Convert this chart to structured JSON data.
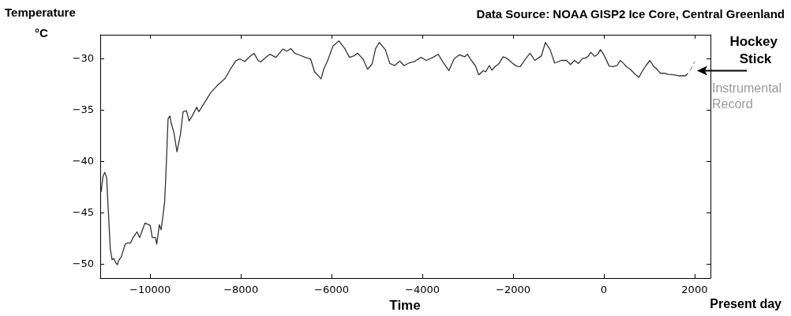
{
  "chart_data": {
    "type": "line",
    "title": "Data Source: NOAA GISP2 Ice Core, Central Greenland",
    "xlabel": "Time",
    "ylabel": "Temperature\n°C",
    "annotations": [
      "Hockey Stick",
      "Present day"
    ],
    "xlim": [
      -11100,
      2350
    ],
    "xticks": [
      -10000,
      -8000,
      -6000,
      -4000,
      -2000,
      0,
      2000
    ],
    "ylim": [
      -51.4,
      -27.7
    ],
    "yticks": [
      -50,
      -45,
      -40,
      -35,
      -30
    ],
    "grid": false,
    "legend": false,
    "marker": "none",
    "series": [
      {
        "color": "#333333",
        "line_style": "solid",
        "x": [
          -11080,
          -11040,
          -11000,
          -10960,
          -10920,
          -10880,
          -10840,
          -10800,
          -10760,
          -10720,
          -10696,
          -10638,
          -10551,
          -10493,
          -10435,
          -10377,
          -10290,
          -10232,
          -10116,
          -10000,
          -9954,
          -9884,
          -9855,
          -9797,
          -9757,
          -9681,
          -9641,
          -9606,
          -9565,
          -9536,
          -9478,
          -9409,
          -9333,
          -9275,
          -9200,
          -9142,
          -9072,
          -8974,
          -8928,
          -8841,
          -8667,
          -8522,
          -8348,
          -8232,
          -8116,
          -8029,
          -7913,
          -7797,
          -7710,
          -7623,
          -7565,
          -7449,
          -7362,
          -7229,
          -7072,
          -6985,
          -6899,
          -6812,
          -6696,
          -6580,
          -6464,
          -6377,
          -6232,
          -6174,
          -6087,
          -5971,
          -5838,
          -5710,
          -5606,
          -5507,
          -5429,
          -5312,
          -5207,
          -5108,
          -5032,
          -4950,
          -4816,
          -4717,
          -4612,
          -4496,
          -4408,
          -4292,
          -4175,
          -4029,
          -3913,
          -3767,
          -3650,
          -3534,
          -3417,
          -3301,
          -3184,
          -3067,
          -3009,
          -2921,
          -2834,
          -2758,
          -2659,
          -2601,
          -2525,
          -2467,
          -2397,
          -2310,
          -2222,
          -2135,
          -2018,
          -1930,
          -1843,
          -1726,
          -1627,
          -1522,
          -1376,
          -1289,
          -1184,
          -1085,
          -939,
          -823,
          -735,
          -648,
          -560,
          -472,
          -414,
          -348,
          -290,
          -203,
          -133,
          -75,
          0,
          116,
          203,
          290,
          365,
          435,
          493,
          580,
          667,
          771,
          841,
          928,
          1014,
          1101,
          1159,
          1246,
          1333,
          1420,
          1536,
          1652,
          1797,
          1855
        ],
        "values": [
          -43.0,
          -41.5,
          -41.1,
          -41.6,
          -45.0,
          -48.5,
          -49.6,
          -49.5,
          -49.9,
          -50.1,
          -49.7,
          -49.35,
          -48.1,
          -47.96,
          -48.0,
          -47.45,
          -46.9,
          -47.45,
          -46.05,
          -46.25,
          -47.45,
          -47.45,
          -48.1,
          -46.2,
          -46.7,
          -44.0,
          -40.0,
          -35.9,
          -35.6,
          -36.3,
          -37.2,
          -39.1,
          -37.4,
          -35.2,
          -35.1,
          -36.1,
          -35.6,
          -34.75,
          -35.2,
          -34.6,
          -33.35,
          -32.65,
          -31.95,
          -31.05,
          -30.25,
          -30.05,
          -30.3,
          -29.8,
          -29.5,
          -30.2,
          -30.35,
          -29.9,
          -29.6,
          -29.9,
          -29.1,
          -29.3,
          -29.05,
          -29.5,
          -29.7,
          -29.9,
          -30.05,
          -31.3,
          -32.0,
          -31.05,
          -30.2,
          -28.8,
          -28.3,
          -29.05,
          -29.9,
          -29.75,
          -29.5,
          -30.05,
          -31.05,
          -30.55,
          -29.05,
          -28.45,
          -29.15,
          -30.5,
          -30.7,
          -30.25,
          -30.7,
          -30.45,
          -30.3,
          -29.9,
          -30.2,
          -29.9,
          -29.6,
          -30.45,
          -31.2,
          -30.05,
          -29.65,
          -29.85,
          -29.6,
          -30.2,
          -30.7,
          -31.6,
          -31.2,
          -31.3,
          -30.7,
          -31.15,
          -30.8,
          -30.5,
          -29.85,
          -30.0,
          -30.45,
          -30.75,
          -30.8,
          -30.05,
          -29.5,
          -30.2,
          -29.75,
          -28.45,
          -29.15,
          -30.45,
          -30.2,
          -30.2,
          -30.6,
          -30.2,
          -30.5,
          -30.0,
          -30.0,
          -29.8,
          -29.4,
          -29.8,
          -29.6,
          -29.15,
          -29.65,
          -30.75,
          -30.8,
          -30.7,
          -30.2,
          -30.5,
          -30.8,
          -31.05,
          -31.45,
          -31.85,
          -31.3,
          -30.7,
          -30.2,
          -30.8,
          -31.0,
          -31.45,
          -31.45,
          -31.55,
          -31.6,
          -31.7,
          -31.7,
          -31.45
        ]
      },
      {
        "name": "Instrumental Record",
        "color": "#999999",
        "line_style": "dashed",
        "x": [
          1896,
          1950,
          2000
        ],
        "values": [
          -31.2,
          -30.8,
          -30.3
        ]
      }
    ]
  }
}
